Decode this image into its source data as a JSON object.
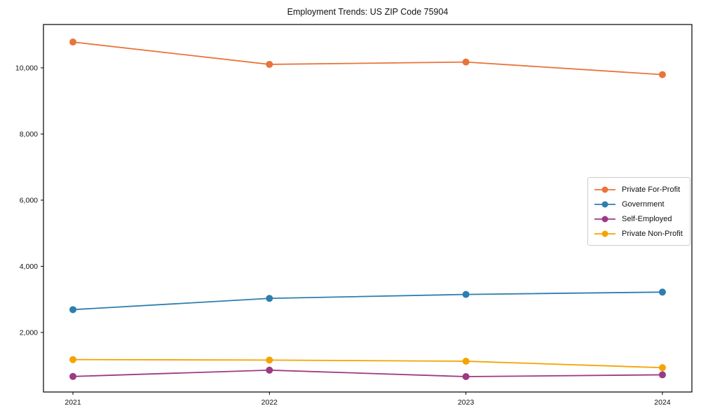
{
  "chart_data": {
    "type": "line",
    "title": "Employment Trends: US ZIP Code 75904",
    "x": [
      2021,
      2022,
      2023,
      2024
    ],
    "xtick_labels": [
      "2021",
      "2022",
      "2023",
      "2024"
    ],
    "ytick_values": [
      2000,
      4000,
      6000,
      8000,
      10000
    ],
    "ytick_labels": [
      "2,000",
      "4,000",
      "6,000",
      "8,000",
      "10,000"
    ],
    "xlim": [
      2020.85,
      2024.15
    ],
    "ylim": [
      200,
      11310
    ],
    "grid": false,
    "legend_position": "center-right",
    "background": "#ffffff",
    "spine_color": "#000000",
    "series": [
      {
        "name": "Private For-Profit",
        "color": "#E8743B",
        "values": [
          10780,
          10105,
          10175,
          9795
        ]
      },
      {
        "name": "Government",
        "color": "#2E7EAE",
        "values": [
          2690,
          3030,
          3150,
          3220
        ]
      },
      {
        "name": "Self-Employed",
        "color": "#9D3985",
        "values": [
          670,
          860,
          665,
          720
        ]
      },
      {
        "name": "Private Non-Profit",
        "color": "#F5A302",
        "values": [
          1180,
          1165,
          1130,
          935
        ]
      }
    ]
  }
}
